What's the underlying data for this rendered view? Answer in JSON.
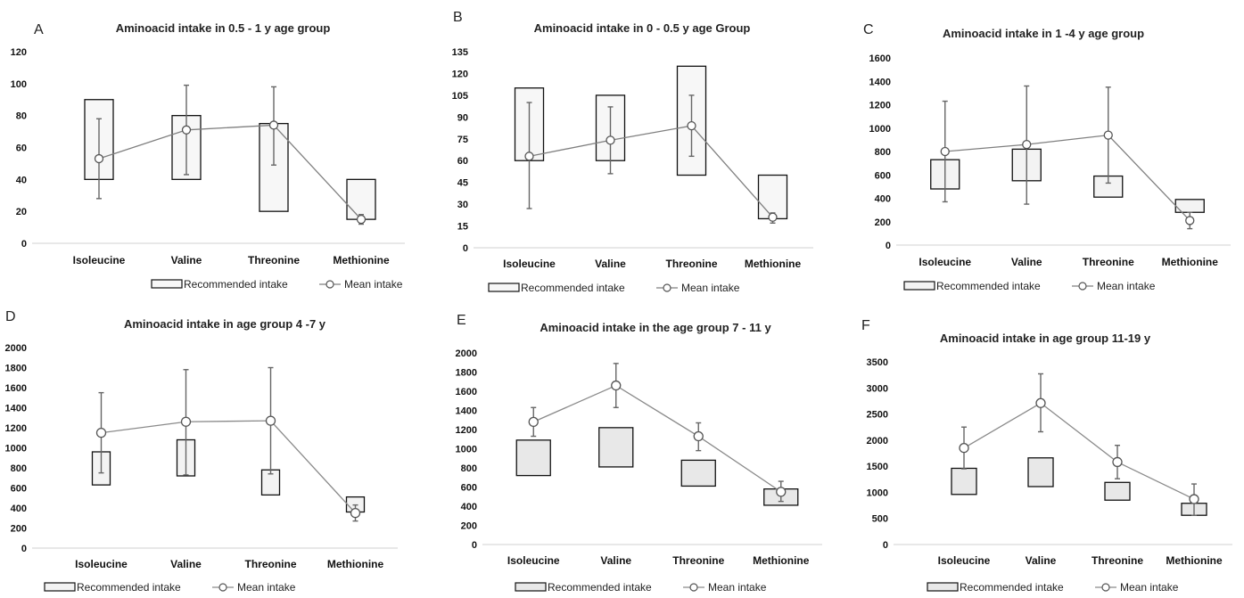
{
  "chart_data": [
    {
      "panel": "A",
      "type": "floating-bar-line",
      "title": "Aminoacid intake in 0.5 - 1 y  age group",
      "categories": [
        "Isoleucine",
        "Valine",
        "Threonine",
        "Methionine"
      ],
      "yticks": [
        0,
        20,
        40,
        60,
        80,
        100,
        120
      ],
      "ylim": [
        0,
        120
      ],
      "recommended": [
        [
          40,
          90
        ],
        [
          40,
          80
        ],
        [
          20,
          75
        ],
        [
          15,
          40
        ]
      ],
      "mean": [
        53,
        71,
        74,
        15
      ],
      "error": [
        [
          28,
          78
        ],
        [
          43,
          99
        ],
        [
          49,
          98
        ],
        [
          12,
          18
        ]
      ],
      "bar_fill": "#f7f7f7",
      "legend": [
        "Recommended intake",
        "Mean intake"
      ]
    },
    {
      "panel": "B",
      "type": "floating-bar-line",
      "title": "Aminoacid intake in 0 - 0.5 y age Group",
      "categories": [
        "Isoleucine",
        "Valine",
        "Threonine",
        "Methionine"
      ],
      "yticks": [
        0,
        15,
        30,
        45,
        60,
        75,
        90,
        105,
        120,
        135
      ],
      "ylim": [
        0,
        135
      ],
      "recommended": [
        [
          60,
          110
        ],
        [
          60,
          105
        ],
        [
          50,
          125
        ],
        [
          20,
          50
        ]
      ],
      "mean": [
        63,
        74,
        84,
        21
      ],
      "error": [
        [
          27,
          100
        ],
        [
          51,
          97
        ],
        [
          63,
          105
        ],
        [
          17,
          24
        ]
      ],
      "bar_fill": "#f7f7f7",
      "legend": [
        "Recommended intake",
        "Mean intake"
      ]
    },
    {
      "panel": "C",
      "type": "floating-bar-line",
      "title": "Aminoacid intake in 1 -4 y age group",
      "categories": [
        "Isoleucine",
        "Valine",
        "Threonine",
        "Methionine"
      ],
      "yticks": [
        0,
        200,
        400,
        600,
        800,
        1000,
        1200,
        1400,
        1600
      ],
      "ylim": [
        0,
        1600
      ],
      "recommended": [
        [
          480,
          730
        ],
        [
          550,
          820
        ],
        [
          410,
          590
        ],
        [
          280,
          390
        ]
      ],
      "mean": [
        800,
        860,
        940,
        210
      ],
      "error": [
        [
          370,
          1230
        ],
        [
          350,
          1360
        ],
        [
          530,
          1350
        ],
        [
          140,
          280
        ]
      ],
      "bar_fill": "#f3f3f3",
      "legend": [
        "Recommended intake",
        "Mean intake"
      ]
    },
    {
      "panel": "D",
      "type": "floating-bar-line",
      "title": "Aminoacid intake in age group 4 -7 y",
      "categories": [
        "Isoleucine",
        "Valine",
        "Threonine",
        "Methionine"
      ],
      "yticks": [
        0,
        200,
        400,
        600,
        800,
        1000,
        1200,
        1400,
        1600,
        1800,
        2000
      ],
      "ylim": [
        0,
        2000
      ],
      "recommended": [
        [
          630,
          960
        ],
        [
          720,
          1080
        ],
        [
          530,
          780
        ],
        [
          360,
          510
        ]
      ],
      "mean": [
        1150,
        1260,
        1270,
        350
      ],
      "error": [
        [
          750,
          1550
        ],
        [
          730,
          1780
        ],
        [
          740,
          1800
        ],
        [
          270,
          430
        ]
      ],
      "bar_fill": "#f3f3f3",
      "legend": [
        "Recommended intake",
        "Mean intake"
      ]
    },
    {
      "panel": "E",
      "type": "floating-bar-line",
      "title": "Aminoacid intake in the age group 7 - 11 y",
      "categories": [
        "Isoleucine",
        "Valine",
        "Threonine",
        "Methionine"
      ],
      "yticks": [
        0,
        200,
        400,
        600,
        800,
        1000,
        1200,
        1400,
        1600,
        1800,
        2000
      ],
      "ylim": [
        0,
        2000
      ],
      "recommended": [
        [
          720,
          1090
        ],
        [
          810,
          1220
        ],
        [
          610,
          880
        ],
        [
          410,
          580
        ]
      ],
      "mean": [
        1280,
        1660,
        1130,
        550
      ],
      "error": [
        [
          1130,
          1430
        ],
        [
          1430,
          1890
        ],
        [
          980,
          1270
        ],
        [
          450,
          660
        ]
      ],
      "bar_fill": "#e8e8e8",
      "legend": [
        "Recommended intake",
        "Mean intake"
      ]
    },
    {
      "panel": "F",
      "type": "floating-bar-line",
      "title": "Aminoacid intake in age group 11-19 y",
      "categories": [
        "Isoleucine",
        "Valine",
        "Threonine",
        "Methionine"
      ],
      "yticks": [
        0,
        500,
        1000,
        1500,
        2000,
        2500,
        3000,
        3500
      ],
      "ylim": [
        0,
        3500
      ],
      "recommended": [
        [
          960,
          1460
        ],
        [
          1110,
          1660
        ],
        [
          850,
          1190
        ],
        [
          560,
          790
        ]
      ],
      "mean": [
        1850,
        2710,
        1580,
        870
      ],
      "error": [
        [
          1450,
          2250
        ],
        [
          2160,
          3270
        ],
        [
          1260,
          1900
        ],
        [
          560,
          1160
        ]
      ],
      "bar_fill": "#e8e8e8",
      "legend": [
        "Recommended intake",
        "Mean intake"
      ]
    }
  ]
}
